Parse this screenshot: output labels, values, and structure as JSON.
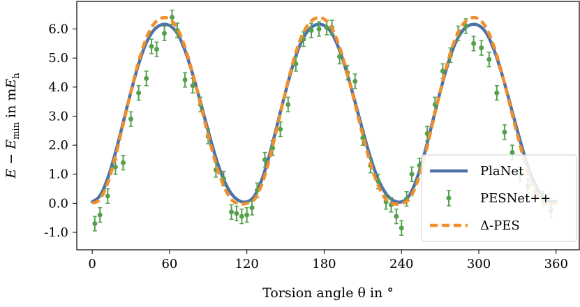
{
  "chart_data": {
    "type": "line",
    "title": "",
    "xlabel": "Torsion angle θ in °",
    "ylabel": "E − E_min in mE_h",
    "ylabel_parts": {
      "a": "E",
      "minus": " − ",
      "b": "E",
      "b_sub": "min",
      "unit_prefix": " in m",
      "c": "E",
      "c_sub": "h"
    },
    "xlim": [
      -12,
      378
    ],
    "ylim": [
      -1.6,
      6.95
    ],
    "xticks": [
      0,
      60,
      120,
      180,
      240,
      300,
      360
    ],
    "xtick_labels": [
      "0",
      "60",
      "120",
      "180",
      "240",
      "300",
      "360"
    ],
    "yticks": [
      -1.0,
      0.0,
      1.0,
      2.0,
      3.0,
      4.0,
      5.0,
      6.0
    ],
    "ytick_labels": [
      "-1.0",
      "0.0",
      "1.0",
      "2.0",
      "3.0",
      "4.0",
      "5.0",
      "6.0"
    ],
    "grid": false,
    "legend_position": "lower-right",
    "series": [
      {
        "name": "PlaNet",
        "style": "solid-line",
        "color": "#4c72a6",
        "x": [
          0,
          6,
          12,
          18,
          24,
          30,
          36,
          42,
          48,
          54,
          60,
          66,
          72,
          78,
          84,
          90,
          96,
          102,
          108,
          114,
          120,
          126,
          132,
          138,
          144,
          150,
          156,
          162,
          168,
          174,
          180,
          186,
          192,
          198,
          204,
          210,
          216,
          222,
          228,
          234,
          240,
          246,
          252,
          258,
          264,
          270,
          276,
          282,
          288,
          294,
          300,
          306,
          312,
          318,
          324,
          330,
          336,
          342,
          348,
          354,
          360
        ],
        "y": [
          0.05,
          0.26,
          0.86,
          1.74,
          2.78,
          3.83,
          4.79,
          5.53,
          5.97,
          6.15,
          6.12,
          5.85,
          5.26,
          4.44,
          3.48,
          2.49,
          1.56,
          0.82,
          0.33,
          0.09,
          0.05,
          0.26,
          0.86,
          1.74,
          2.78,
          3.83,
          4.79,
          5.53,
          5.97,
          6.15,
          6.12,
          5.85,
          5.26,
          4.44,
          3.48,
          2.49,
          1.56,
          0.82,
          0.33,
          0.09,
          0.05,
          0.26,
          0.86,
          1.74,
          2.78,
          3.83,
          4.79,
          5.53,
          5.97,
          6.15,
          6.12,
          5.85,
          5.26,
          4.44,
          3.48,
          2.49,
          1.56,
          0.82,
          0.33,
          0.09,
          0.05
        ]
      },
      {
        "name": "PESNet++",
        "style": "errorbar-points",
        "color": "#55a04d",
        "x": [
          2,
          6,
          12,
          18,
          24,
          30,
          36,
          42,
          46,
          50,
          56,
          62,
          66,
          72,
          78,
          84,
          90,
          96,
          102,
          108,
          112,
          116,
          120,
          124,
          128,
          134,
          140,
          146,
          152,
          158,
          164,
          170,
          176,
          182,
          186,
          192,
          198,
          204,
          210,
          216,
          222,
          228,
          232,
          236,
          240,
          244,
          248,
          254,
          260,
          266,
          272,
          278,
          284,
          290,
          296,
          302,
          308,
          314,
          320,
          326,
          332,
          338,
          344,
          350,
          356
        ],
        "y": [
          -0.7,
          -0.4,
          0.25,
          1.25,
          1.4,
          2.9,
          3.8,
          4.3,
          5.4,
          5.3,
          5.85,
          6.4,
          5.95,
          4.25,
          4.05,
          3.4,
          2.3,
          1.15,
          0.85,
          -0.3,
          -0.35,
          -0.45,
          -0.4,
          -0.15,
          0.45,
          1.5,
          1.9,
          2.55,
          3.4,
          4.8,
          5.65,
          5.95,
          6.0,
          6.05,
          6.05,
          5.05,
          4.5,
          4.2,
          2.25,
          1.3,
          0.75,
          0.05,
          -0.05,
          -0.45,
          -0.85,
          0.15,
          1.0,
          1.3,
          2.4,
          3.4,
          4.55,
          5.1,
          5.85,
          6.1,
          5.5,
          5.35,
          4.95,
          3.8,
          2.45,
          1.75,
          1.0,
          0.6,
          0.4,
          0.15,
          -0.25
        ],
        "err": [
          0.25,
          0.25,
          0.25,
          0.25,
          0.25,
          0.25,
          0.25,
          0.25,
          0.25,
          0.25,
          0.25,
          0.25,
          0.25,
          0.25,
          0.25,
          0.25,
          0.25,
          0.25,
          0.25,
          0.25,
          0.25,
          0.25,
          0.25,
          0.25,
          0.25,
          0.25,
          0.25,
          0.25,
          0.25,
          0.25,
          0.25,
          0.25,
          0.25,
          0.25,
          0.25,
          0.25,
          0.25,
          0.25,
          0.25,
          0.25,
          0.25,
          0.25,
          0.25,
          0.25,
          0.25,
          0.25,
          0.25,
          0.25,
          0.25,
          0.25,
          0.25,
          0.25,
          0.25,
          0.25,
          0.25,
          0.25,
          0.25,
          0.25,
          0.25,
          0.25,
          0.25,
          0.25,
          0.25,
          0.25,
          0.25
        ]
      },
      {
        "name": "Δ-PES",
        "style": "dashed-line",
        "color": "#f28e2b",
        "x": [
          0,
          6,
          12,
          18,
          24,
          30,
          36,
          42,
          48,
          54,
          60,
          66,
          72,
          78,
          84,
          90,
          96,
          102,
          108,
          114,
          120,
          126,
          132,
          138,
          144,
          150,
          156,
          162,
          168,
          174,
          180,
          186,
          192,
          198,
          204,
          210,
          216,
          222,
          228,
          234,
          240,
          246,
          252,
          258,
          264,
          270,
          276,
          282,
          288,
          294,
          300,
          306,
          312,
          318,
          324,
          330,
          336,
          342,
          348,
          354,
          360
        ],
        "y": [
          0.0,
          0.14,
          0.7,
          1.61,
          2.72,
          3.84,
          4.88,
          5.69,
          6.18,
          6.38,
          6.34,
          6.02,
          5.37,
          4.46,
          3.41,
          2.34,
          1.36,
          0.6,
          0.13,
          -0.02,
          0.0,
          0.14,
          0.7,
          1.61,
          2.72,
          3.84,
          4.88,
          5.69,
          6.18,
          6.38,
          6.34,
          6.02,
          5.37,
          4.46,
          3.41,
          2.34,
          1.36,
          0.6,
          0.13,
          -0.02,
          0.0,
          0.14,
          0.7,
          1.61,
          2.72,
          3.84,
          4.88,
          5.69,
          6.18,
          6.38,
          6.34,
          6.02,
          5.37,
          4.46,
          3.41,
          2.34,
          1.36,
          0.6,
          0.13,
          -0.02,
          0.0
        ]
      }
    ],
    "legend": {
      "entries": [
        "PlaNet",
        "PESNet++",
        "Δ-PES"
      ]
    }
  }
}
